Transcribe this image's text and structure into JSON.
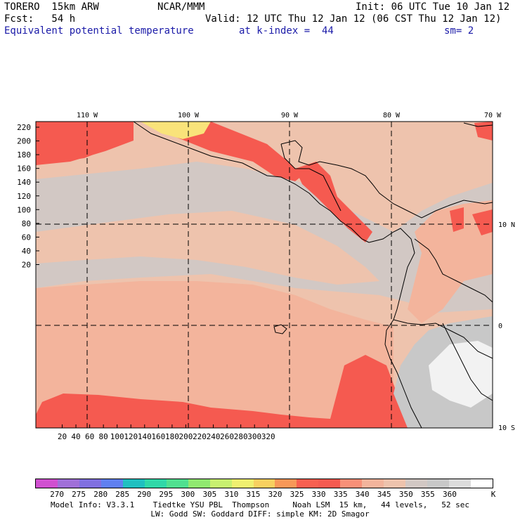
{
  "header": {
    "model": "TORERO  15km ARW",
    "center": "NCAR/MMM",
    "init": "Init: 06 UTC Tue 10 Jan 12",
    "fcst": "Fcst:   54 h",
    "valid": "Valid: 12 UTC Thu 12 Jan 12 (06 CST Thu 12 Jan 12)",
    "field": "Equivalent potential temperature",
    "level": "at k-index =  44",
    "smoothing": "sm= 2"
  },
  "map": {
    "top_lon_labels": [
      "110 W",
      "100 W",
      "90 W",
      "80 W",
      "70 W"
    ],
    "right_lat_labels": [
      "10 N",
      "0",
      "10 S"
    ],
    "left_y_ticks": [
      "220",
      "200",
      "180",
      "160",
      "140",
      "120",
      "100",
      "80",
      "60",
      "40",
      "20"
    ],
    "bottom_x_ticks": [
      "20",
      "40",
      "60",
      "80",
      "100",
      "120",
      "140",
      "160",
      "180",
      "200",
      "220",
      "240",
      "260",
      "280",
      "300",
      "320"
    ],
    "colors": {
      "c330": "#f55a50",
      "c335": "#f89078",
      "c340": "#f3b49c",
      "c345": "#eec3ad",
      "c350": "#d2c8c4",
      "c355": "#c8c8c8",
      "c360": "#dcdcdc",
      "c365": "#f2f2f2",
      "warm_yellow": "#f9e37a",
      "warm_orange": "#f8a95a"
    }
  },
  "colorbar": {
    "labels": [
      "270",
      "275",
      "280",
      "285",
      "290",
      "295",
      "300",
      "305",
      "310",
      "315",
      "320",
      "325",
      "330",
      "335",
      "340",
      "345",
      "350",
      "355",
      "360"
    ],
    "unit": "K",
    "colors": [
      "#d050d0",
      "#a070d8",
      "#8070e0",
      "#6080f0",
      "#20c0c0",
      "#30d8a8",
      "#50e090",
      "#90e870",
      "#c8f070",
      "#f0f070",
      "#f8d060",
      "#f89858",
      "#f86050",
      "#f55a50",
      "#f89078",
      "#f3b49c",
      "#eec3ad",
      "#d2c8c4",
      "#c8c8c8",
      "#dcdcdc",
      "#ffffff"
    ]
  },
  "footer": {
    "line1": "Model Info: V3.3.1    Tiedtke YSU PBL  Thompson     Noah LSM  15 km,   44 levels,   52 sec",
    "line2": "LW: Godd SW: Goddard DIFF: simple KM: 2D Smagor"
  }
}
